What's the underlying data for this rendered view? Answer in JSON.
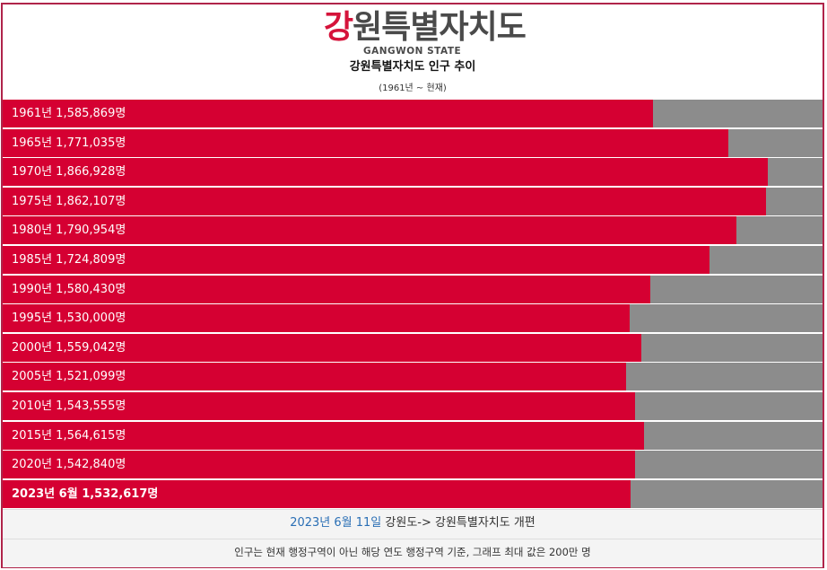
{
  "header": {
    "logo_accent": "강",
    "logo_rest": "원특별자치도",
    "logo_en": "GANGWON STATE",
    "title": "강원특별자치도 인구 추이",
    "subtitle": "(1961년 ~ 현재)"
  },
  "colors": {
    "bar": "#d50032",
    "track": "#8c8c8c",
    "border": "#b0244a",
    "date_link": "#2a6fb5"
  },
  "chart_data": {
    "type": "bar",
    "orientation": "horizontal",
    "title": "강원특별자치도 인구 추이",
    "subtitle": "(1961년 ~ 현재)",
    "max": 2000000,
    "categories": [
      "1961년",
      "1965년",
      "1970년",
      "1975년",
      "1980년",
      "1985년",
      "1990년",
      "1995년",
      "2000년",
      "2005년",
      "2010년",
      "2015년",
      "2020년",
      "2023년 6월"
    ],
    "values": [
      1585869,
      1771035,
      1866928,
      1862107,
      1790954,
      1724809,
      1580430,
      1530000,
      1559042,
      1521099,
      1543555,
      1564615,
      1542840,
      1532617
    ],
    "labels": [
      "1961년 1,585,869명",
      "1965년 1,771,035명",
      "1970년 1,866,928명",
      "1975년 1,862,107명",
      "1980년 1,790,954명",
      "1985년 1,724,809명",
      "1990년 1,580,430명",
      "1995년 1,530,000명",
      "2000년 1,559,042명",
      "2005년 1,521,099명",
      "2010년 1,543,555명",
      "2015년 1,564,615명",
      "2020년 1,542,840명",
      "2023년 6월 1,532,617명"
    ],
    "bold_last": true
  },
  "footer": {
    "date": "2023년 6월 11일",
    "change": " 강원도-> 강원특별자치도 개편",
    "note": "인구는 현재 행정구역이 아닌 해당 연도 행정구역 기준, 그래프 최대 값은 200만 명"
  }
}
